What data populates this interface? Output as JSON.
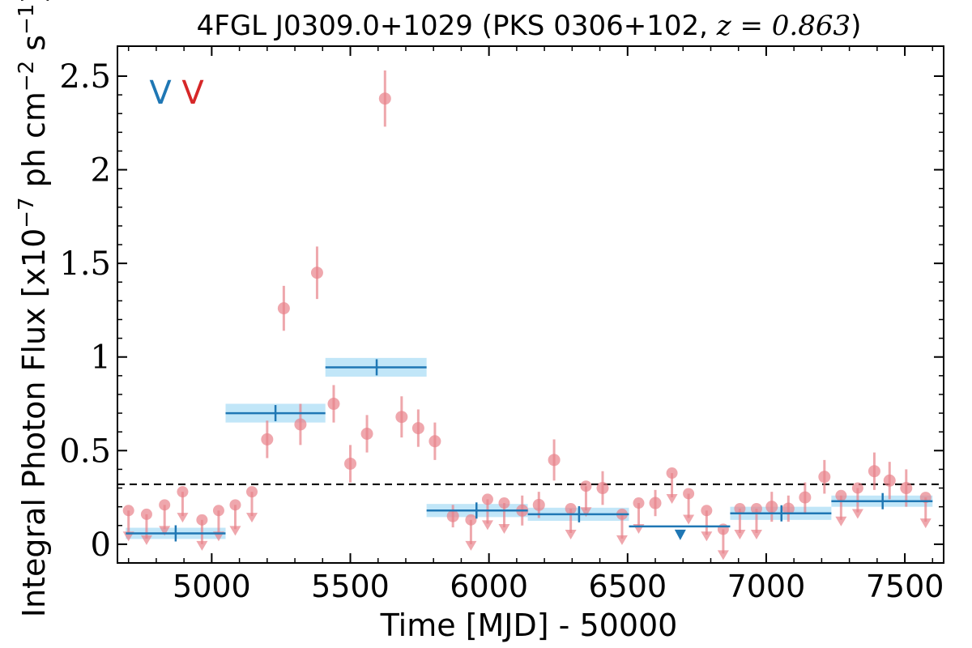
{
  "chart_data": {
    "type": "scatter",
    "title_main": "4FGL J0309.0+1029 (PKS 0306+102, ",
    "title_math": "z = 0.863",
    "title_close": ")",
    "xlabel": "Time [MJD] - 50000",
    "ylabel": "Integral Photon Flux [x10",
    "ylabel_exp": "−7",
    "ylabel_mid": " ph cm",
    "ylabel_exp2": "−2",
    "ylabel_mid2": " s",
    "ylabel_exp3": "−1",
    "ylabel_close": "]",
    "xlim": [
      4660,
      7640
    ],
    "ylim": [
      -0.1,
      2.66
    ],
    "xticks": [
      5000,
      5500,
      6000,
      6500,
      7000,
      7500
    ],
    "xtick_labels": [
      "5000",
      "5500",
      "6000",
      "6500",
      "7000",
      "7500"
    ],
    "yticks": [
      0,
      0.5,
      1,
      1.5,
      2,
      2.5
    ],
    "ytick_labels": [
      "0",
      "0.5",
      "1",
      "1.5",
      "2",
      "2.5"
    ],
    "threshold": 0.32,
    "legend_marks": [
      {
        "text": "V",
        "color": "#1f77b4"
      },
      {
        "text": "V",
        "color": "#d62728"
      }
    ],
    "colors": {
      "short_bins": "#e8828a",
      "long_bins": "#1f77b4",
      "long_band": "#9fd8f5",
      "threshold": "#000000"
    },
    "short_bins_detections": [
      {
        "x": 5200,
        "y": 0.56,
        "err": 0.1
      },
      {
        "x": 5260,
        "y": 1.26,
        "err": 0.12
      },
      {
        "x": 5320,
        "y": 0.64,
        "err": 0.11
      },
      {
        "x": 5380,
        "y": 1.45,
        "err": 0.14
      },
      {
        "x": 5440,
        "y": 0.75,
        "err": 0.1
      },
      {
        "x": 5500,
        "y": 0.43,
        "err": 0.1
      },
      {
        "x": 5560,
        "y": 0.59,
        "err": 0.1
      },
      {
        "x": 5625,
        "y": 2.38,
        "err": 0.15
      },
      {
        "x": 5685,
        "y": 0.68,
        "err": 0.11
      },
      {
        "x": 5745,
        "y": 0.62,
        "err": 0.1
      },
      {
        "x": 5805,
        "y": 0.55,
        "err": 0.1
      },
      {
        "x": 5870,
        "y": 0.15,
        "err": 0.06
      },
      {
        "x": 6120,
        "y": 0.18,
        "err": 0.08
      },
      {
        "x": 6180,
        "y": 0.21,
        "err": 0.07
      },
      {
        "x": 6235,
        "y": 0.45,
        "err": 0.11
      },
      {
        "x": 6410,
        "y": 0.3,
        "err": 0.09
      },
      {
        "x": 6600,
        "y": 0.22,
        "err": 0.07
      },
      {
        "x": 7020,
        "y": 0.2,
        "err": 0.08
      },
      {
        "x": 7080,
        "y": 0.19,
        "err": 0.07
      },
      {
        "x": 7140,
        "y": 0.25,
        "err": 0.08
      },
      {
        "x": 7210,
        "y": 0.36,
        "err": 0.09
      },
      {
        "x": 7390,
        "y": 0.39,
        "err": 0.1
      },
      {
        "x": 7445,
        "y": 0.34,
        "err": 0.1
      },
      {
        "x": 7505,
        "y": 0.3,
        "err": 0.1
      }
    ],
    "short_bins_upper_limits": [
      {
        "x": 4700,
        "y": 0.18
      },
      {
        "x": 4765,
        "y": 0.16
      },
      {
        "x": 4830,
        "y": 0.21
      },
      {
        "x": 4895,
        "y": 0.28
      },
      {
        "x": 4965,
        "y": 0.13
      },
      {
        "x": 5025,
        "y": 0.18
      },
      {
        "x": 5085,
        "y": 0.21
      },
      {
        "x": 5145,
        "y": 0.28
      },
      {
        "x": 5935,
        "y": 0.13
      },
      {
        "x": 5995,
        "y": 0.24
      },
      {
        "x": 6055,
        "y": 0.22
      },
      {
        "x": 6295,
        "y": 0.19
      },
      {
        "x": 6350,
        "y": 0.31
      },
      {
        "x": 6480,
        "y": 0.16
      },
      {
        "x": 6540,
        "y": 0.22
      },
      {
        "x": 6660,
        "y": 0.38
      },
      {
        "x": 6720,
        "y": 0.27
      },
      {
        "x": 6785,
        "y": 0.18
      },
      {
        "x": 6845,
        "y": 0.08
      },
      {
        "x": 6905,
        "y": 0.19
      },
      {
        "x": 6965,
        "y": 0.19
      },
      {
        "x": 7270,
        "y": 0.26
      },
      {
        "x": 7330,
        "y": 0.3
      },
      {
        "x": 7575,
        "y": 0.25
      }
    ],
    "long_bins": [
      {
        "x0": 4690,
        "x1": 5050,
        "y": 0.058,
        "xc": 4870,
        "band": 0.03
      },
      {
        "x0": 5050,
        "x1": 5410,
        "y": 0.7,
        "xc": 5230,
        "band": 0.05
      },
      {
        "x0": 5410,
        "x1": 5775,
        "y": 0.945,
        "xc": 5595,
        "band": 0.05
      },
      {
        "x0": 5775,
        "x1": 6140,
        "y": 0.18,
        "xc": 5955,
        "band": 0.035
      },
      {
        "x0": 6140,
        "x1": 6505,
        "y": 0.16,
        "xc": 6325,
        "band": 0.035
      },
      {
        "x0": 6870,
        "x1": 7235,
        "y": 0.165,
        "xc": 7055,
        "band": 0.035
      },
      {
        "x0": 7235,
        "x1": 7600,
        "y": 0.23,
        "xc": 7420,
        "band": 0.03
      }
    ],
    "long_bins_upper_limits": [
      {
        "x0": 6505,
        "x1": 6870,
        "y": 0.095,
        "xc": 6690
      }
    ]
  }
}
